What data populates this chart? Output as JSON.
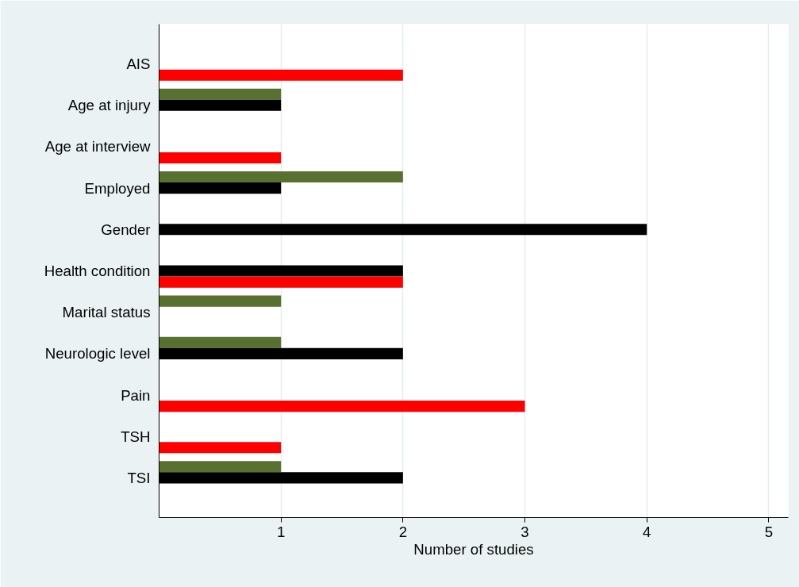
{
  "chart_data": {
    "type": "bar",
    "orientation": "horizontal",
    "xlabel": "Number of studies",
    "categories": [
      "AIS",
      "Age at injury",
      "Age at interview",
      "Employed",
      "Gender",
      "Health condition",
      "Marital status",
      "Neurologic level",
      "Pain",
      "TSH",
      "TSI"
    ],
    "series": [
      {
        "color": "#587131",
        "values": [
          null,
          1,
          null,
          2,
          null,
          null,
          1,
          1,
          null,
          null,
          1
        ]
      },
      {
        "color": "#000000",
        "values": [
          null,
          1,
          null,
          1,
          4,
          2,
          null,
          2,
          null,
          null,
          2
        ]
      },
      {
        "color": "#ff0000",
        "values": [
          2,
          null,
          1,
          null,
          null,
          2,
          null,
          null,
          3,
          1,
          null
        ]
      }
    ],
    "xlim": [
      0,
      5.16
    ],
    "xticks": [
      1,
      2,
      3,
      4,
      5
    ],
    "grid": "x"
  }
}
